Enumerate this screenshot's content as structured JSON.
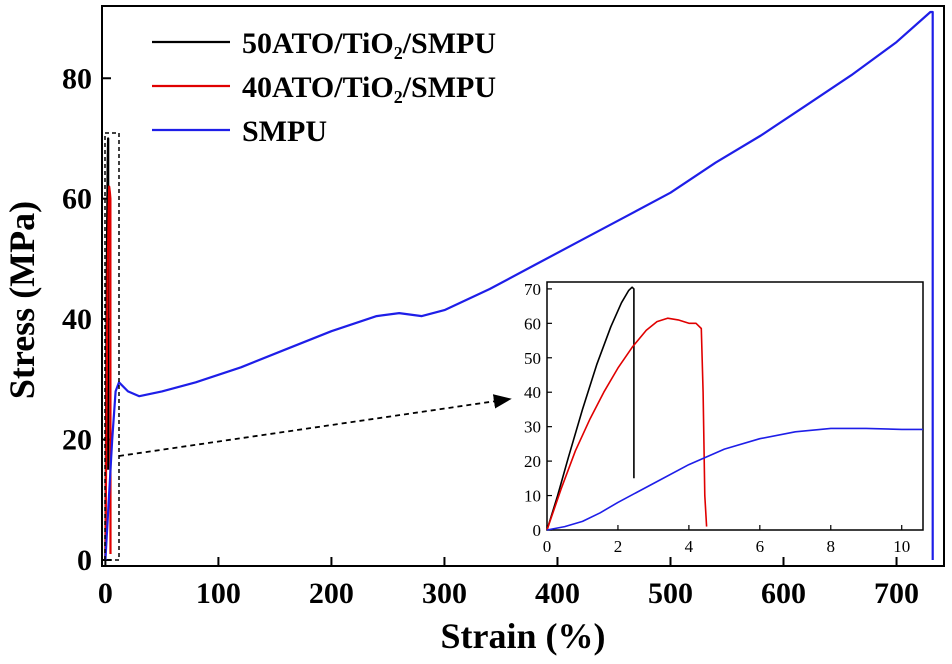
{
  "chart_data": [
    {
      "type": "line",
      "name": "main",
      "xlabel": "Strain (%)",
      "ylabel": "Stress (MPa)",
      "xlim": [
        -3,
        742
      ],
      "ylim": [
        -1,
        92
      ],
      "xticks": [
        0,
        100,
        200,
        300,
        400,
        500,
        600,
        700
      ],
      "yticks": [
        0,
        20,
        40,
        60,
        80
      ],
      "legend_position": "top-left",
      "series": [
        {
          "name": "50ATO/TiO₂/SMPU",
          "color": "#000000",
          "x": [
            0,
            0.5,
            1,
            1.5,
            2,
            2.4,
            2.45,
            2.45
          ],
          "y": [
            0,
            20,
            40,
            55,
            66,
            70,
            70,
            15
          ]
        },
        {
          "name": "40ATO/TiO₂/SMPU",
          "color": "#e00000",
          "x": [
            0,
            1,
            2,
            3,
            3.4,
            4,
            4.4,
            4.45,
            4.5
          ],
          "y": [
            0,
            25,
            48,
            59,
            62,
            61,
            60,
            40,
            1
          ]
        },
        {
          "name": "SMPU",
          "color": "#1e1ee8",
          "x": [
            0,
            3,
            6,
            9,
            12,
            20,
            30,
            50,
            80,
            120,
            160,
            200,
            240,
            260,
            280,
            300,
            340,
            380,
            420,
            460,
            500,
            540,
            580,
            620,
            660,
            700,
            730,
            732,
            732
          ],
          "y": [
            0,
            10,
            20,
            28,
            29.5,
            28,
            27.2,
            28,
            29.5,
            32,
            35,
            38,
            40.5,
            41,
            40.5,
            41.5,
            45,
            49,
            53,
            57,
            61,
            66,
            70.5,
            75.5,
            80.5,
            86,
            91,
            91,
            0
          ]
        }
      ]
    },
    {
      "type": "line",
      "name": "inset",
      "xlim": [
        0,
        10.6
      ],
      "ylim": [
        0,
        72
      ],
      "xticks": [
        0,
        2,
        4,
        6,
        8,
        10
      ],
      "yticks": [
        0,
        10,
        20,
        30,
        40,
        50,
        60,
        70
      ],
      "series": [
        {
          "name": "50ATO/TiO₂/SMPU",
          "color": "#000000",
          "x": [
            0,
            0.3,
            0.6,
            1.0,
            1.4,
            1.8,
            2.1,
            2.3,
            2.4,
            2.45,
            2.45
          ],
          "y": [
            0,
            10,
            21,
            35,
            48,
            59,
            66,
            69.5,
            70.5,
            70,
            15
          ]
        },
        {
          "name": "40ATO/TiO₂/SMPU",
          "color": "#e00000",
          "x": [
            0,
            0.4,
            0.8,
            1.2,
            1.6,
            2.0,
            2.4,
            2.8,
            3.1,
            3.4,
            3.7,
            4.0,
            4.2,
            4.35,
            4.4,
            4.45,
            4.5
          ],
          "y": [
            0,
            12,
            23,
            32,
            40,
            47,
            53,
            58,
            60.5,
            61.5,
            61,
            60,
            60,
            58.5,
            40,
            10,
            1
          ]
        },
        {
          "name": "SMPU",
          "color": "#1e1ee8",
          "x": [
            0,
            0.5,
            1,
            1.5,
            2,
            3,
            4,
            5,
            6,
            7,
            8,
            9,
            10,
            10.6
          ],
          "y": [
            0,
            1,
            2.5,
            5,
            8,
            13.5,
            19,
            23.5,
            26.5,
            28.5,
            29.5,
            29.5,
            29.2,
            29.2
          ]
        }
      ]
    }
  ]
}
